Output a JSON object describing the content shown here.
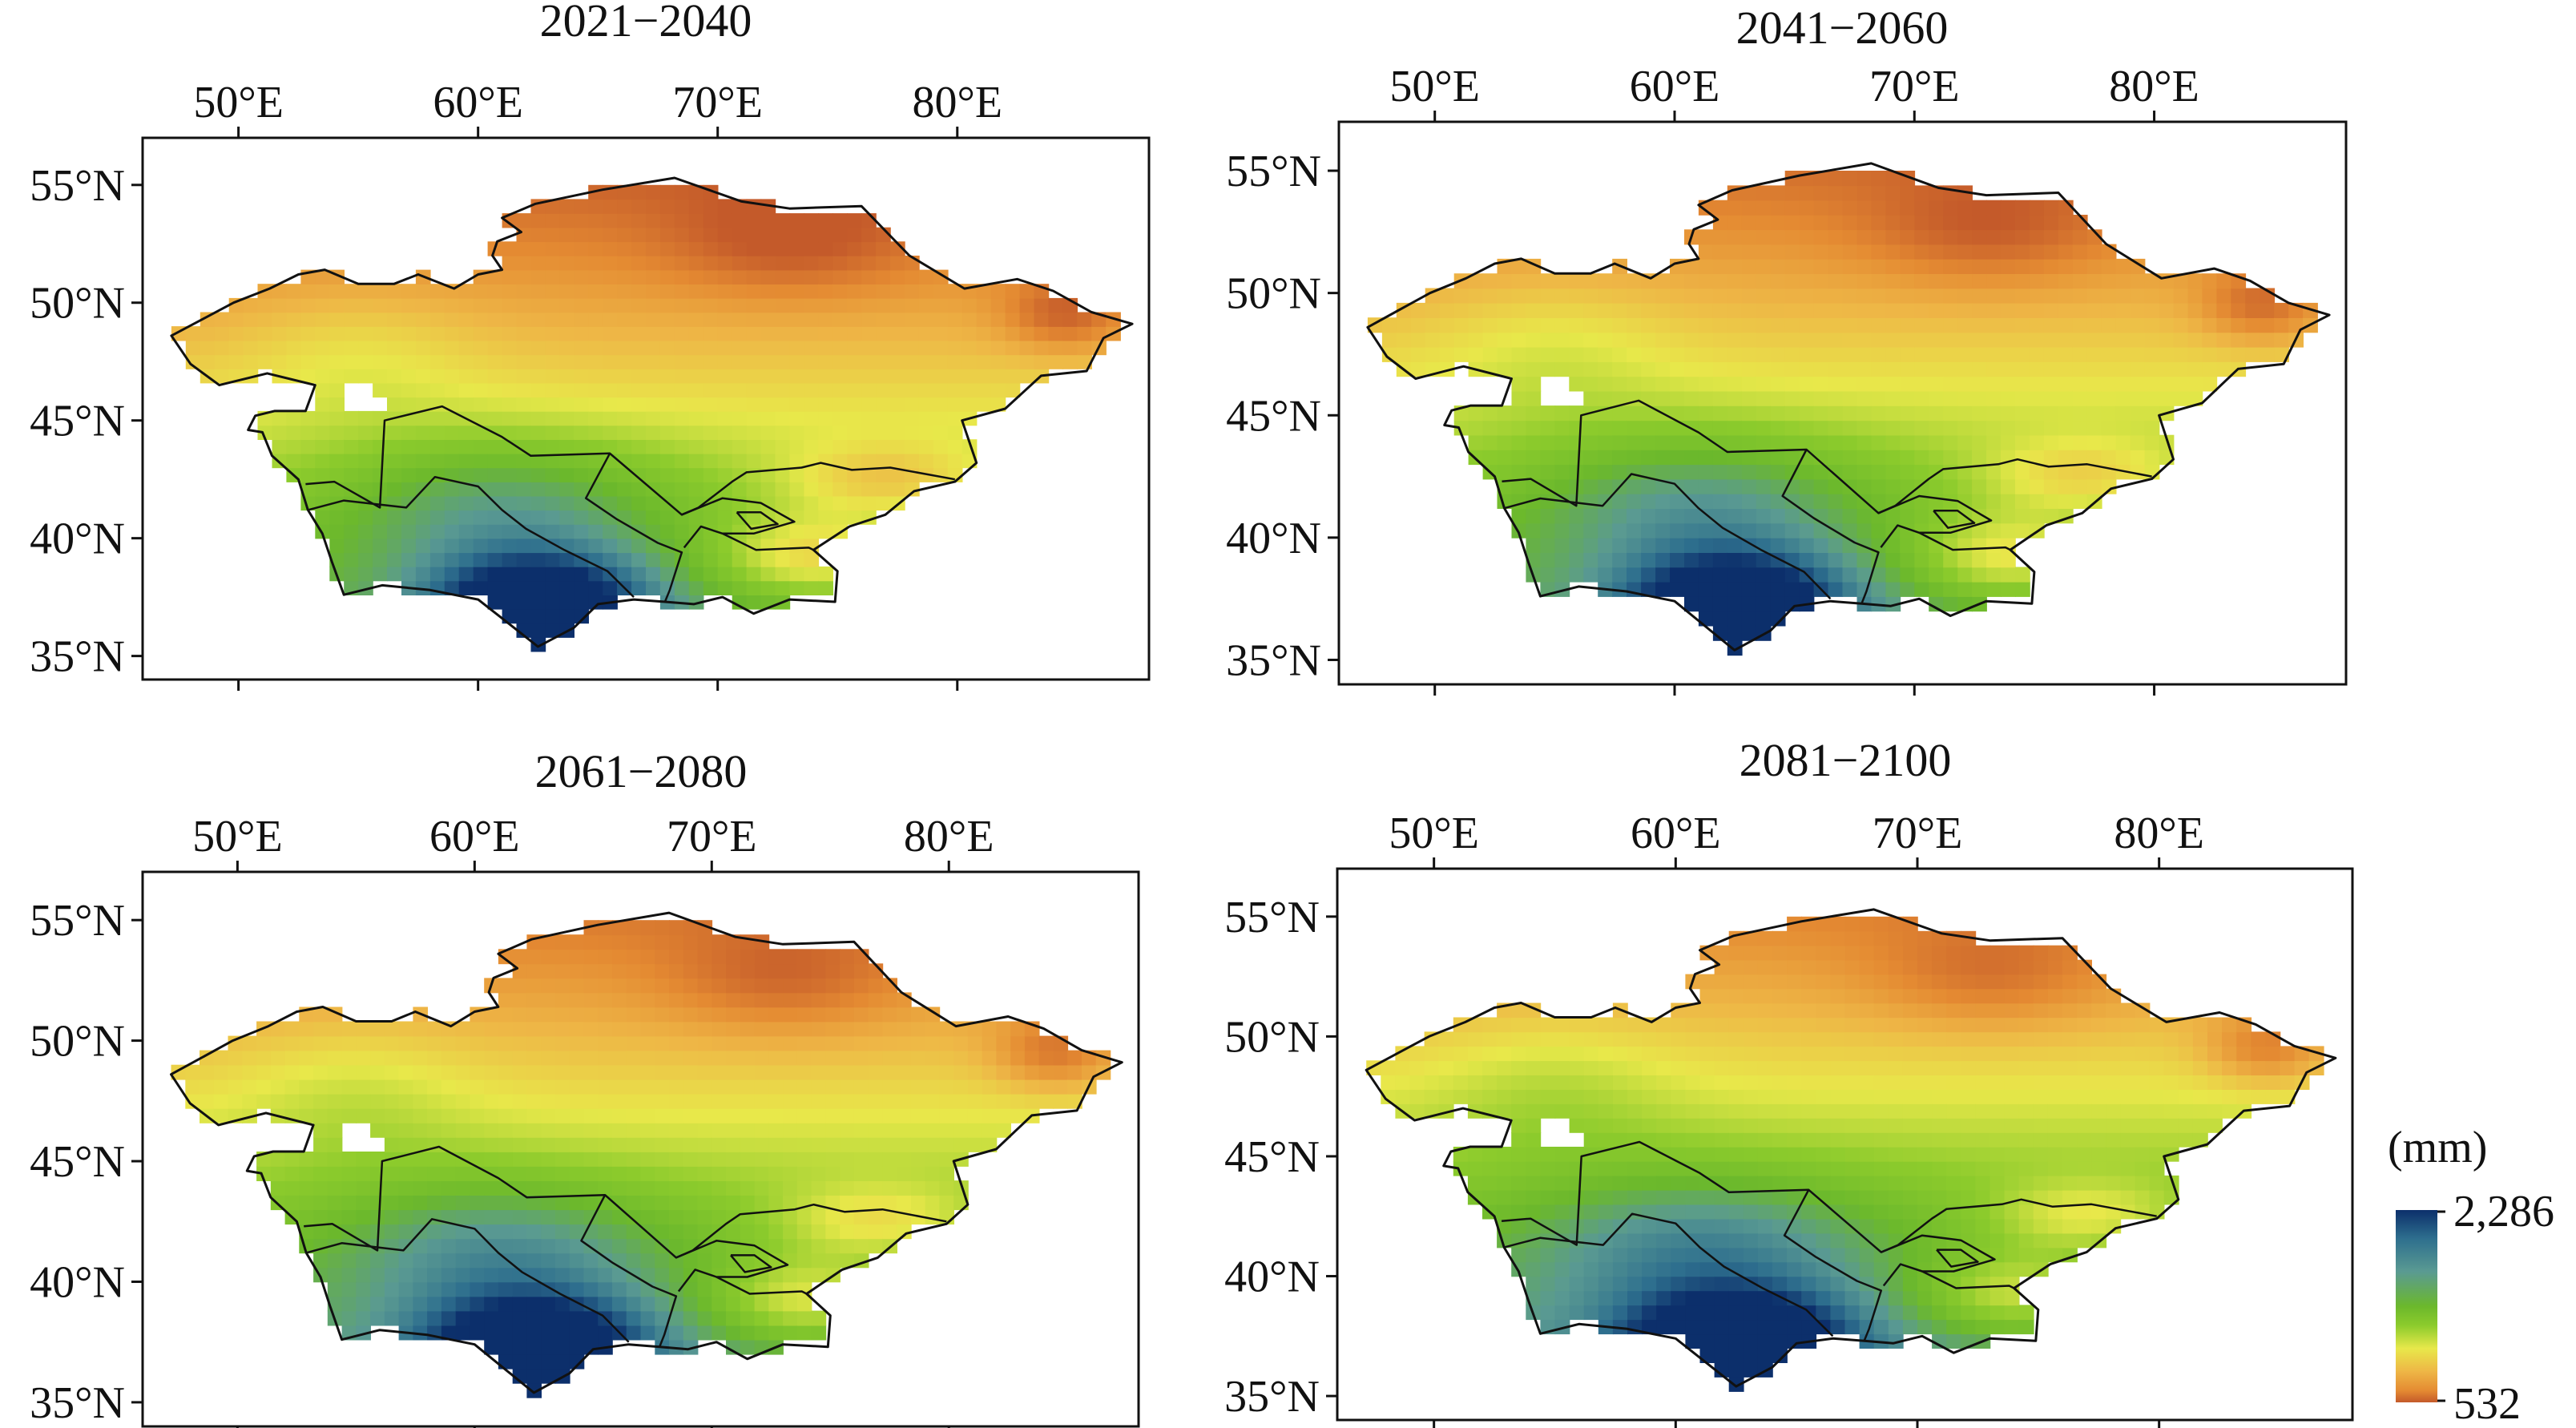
{
  "map_data": {
    "type": "choropleth-grid",
    "region": "Central Asia",
    "panels": [
      {
        "title": "2021−2040"
      },
      {
        "title": "2041−2060"
      },
      {
        "title": "2061−2080"
      },
      {
        "title": "2081−2100"
      }
    ],
    "x_ticks": [
      "50°E",
      "60°E",
      "70°E",
      "80°E"
    ],
    "x_tick_values": [
      50,
      60,
      70,
      80
    ],
    "y_ticks": [
      "55°N",
      "50°N",
      "45°N",
      "40°N",
      "35°N"
    ],
    "y_tick_values": [
      55,
      50,
      45,
      40,
      35
    ],
    "lon_range": [
      46,
      88
    ],
    "lat_range": [
      34,
      57
    ],
    "legend": {
      "unit": "(mm)",
      "max_label": "2,286",
      "min_label": "532",
      "max": 2286,
      "min": 532,
      "colors": [
        "#0c2f6b",
        "#2e6f8e",
        "#5a9a92",
        "#6bb82c",
        "#8ccb2c",
        "#e8e84a",
        "#eeb646",
        "#e48a32",
        "#c45a2a"
      ]
    },
    "line_color": "#111111"
  }
}
